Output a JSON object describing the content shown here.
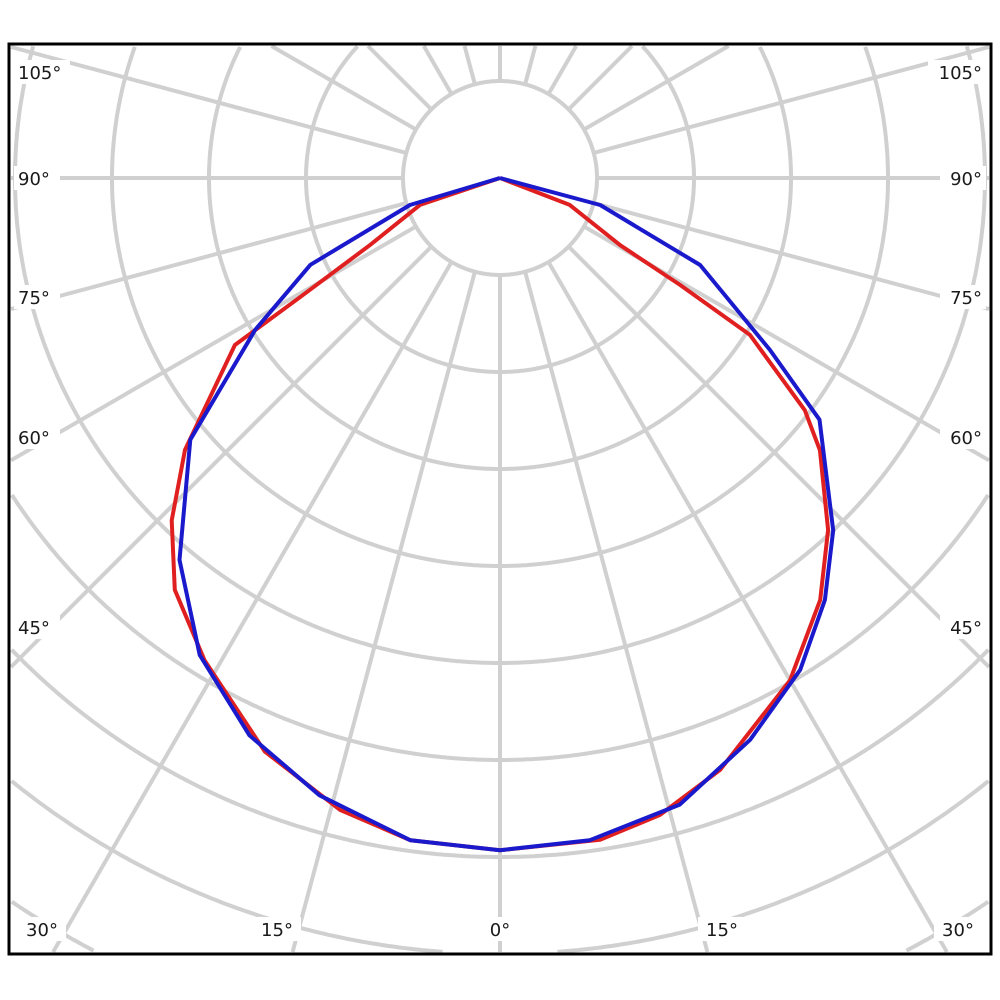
{
  "chart_data": {
    "type": "line",
    "projection": "polar",
    "title": "",
    "angle_zero_direction": "down",
    "angle_step_deg": 15,
    "radial_tick_labels": false,
    "grid": true,
    "legend": "none",
    "angle_labels": {
      "left": [
        "105°",
        "90°",
        "75°",
        "60°",
        "45°"
      ],
      "right": [
        "105°",
        "90°",
        "75°",
        "60°",
        "45°"
      ],
      "bottom": [
        "30°",
        "15°",
        "0°",
        "15°",
        "30°"
      ]
    },
    "colors": {
      "grid": "#d0d0d0",
      "frame": "#000000",
      "series_1": "#e02020",
      "series_2": "#1a1acc"
    },
    "series": [
      {
        "color": "#e02020",
        "angles_deg": [
          -90,
          -71.4,
          -62.7,
          -59.2,
          -57.8,
          -49.2,
          -43.8,
          -38.3,
          -31.5,
          -22.3,
          -14.2,
          -7.7,
          0,
          8.6,
          14.1,
          20.4,
          30,
          37.2,
          43,
          49.6,
          52.7,
          57.9,
          59.3,
          60.8,
          68.9,
          90
        ],
        "values": [
          0,
          0.87,
          1.51,
          2.4,
          3.23,
          4.29,
          4.89,
          5.41,
          5.83,
          6.39,
          6.72,
          6.89,
          6.93,
          6.9,
          6.77,
          6.51,
          5.98,
          5.46,
          4.96,
          4.33,
          3.95,
          3.04,
          2.16,
          1.42,
          0.77,
          0
        ]
      },
      {
        "color": "#1a1acc",
        "angles_deg": [
          -90,
          -73.3,
          -65.4,
          -58.2,
          -49.8,
          -40,
          -32.2,
          -24.2,
          -16.3,
          -7.7,
          0,
          7.7,
          16,
          24,
          31.4,
          37.6,
          43.4,
          52.9,
          57.5,
          66.5,
          74.9,
          90
        ],
        "values": [
          0,
          0.97,
          2.15,
          2.97,
          4.18,
          5.14,
          5.81,
          6.3,
          6.63,
          6.89,
          6.93,
          6.89,
          6.72,
          6.34,
          5.94,
          5.49,
          5.0,
          4.13,
          3.3,
          2.25,
          1.07,
          0
        ]
      }
    ]
  }
}
